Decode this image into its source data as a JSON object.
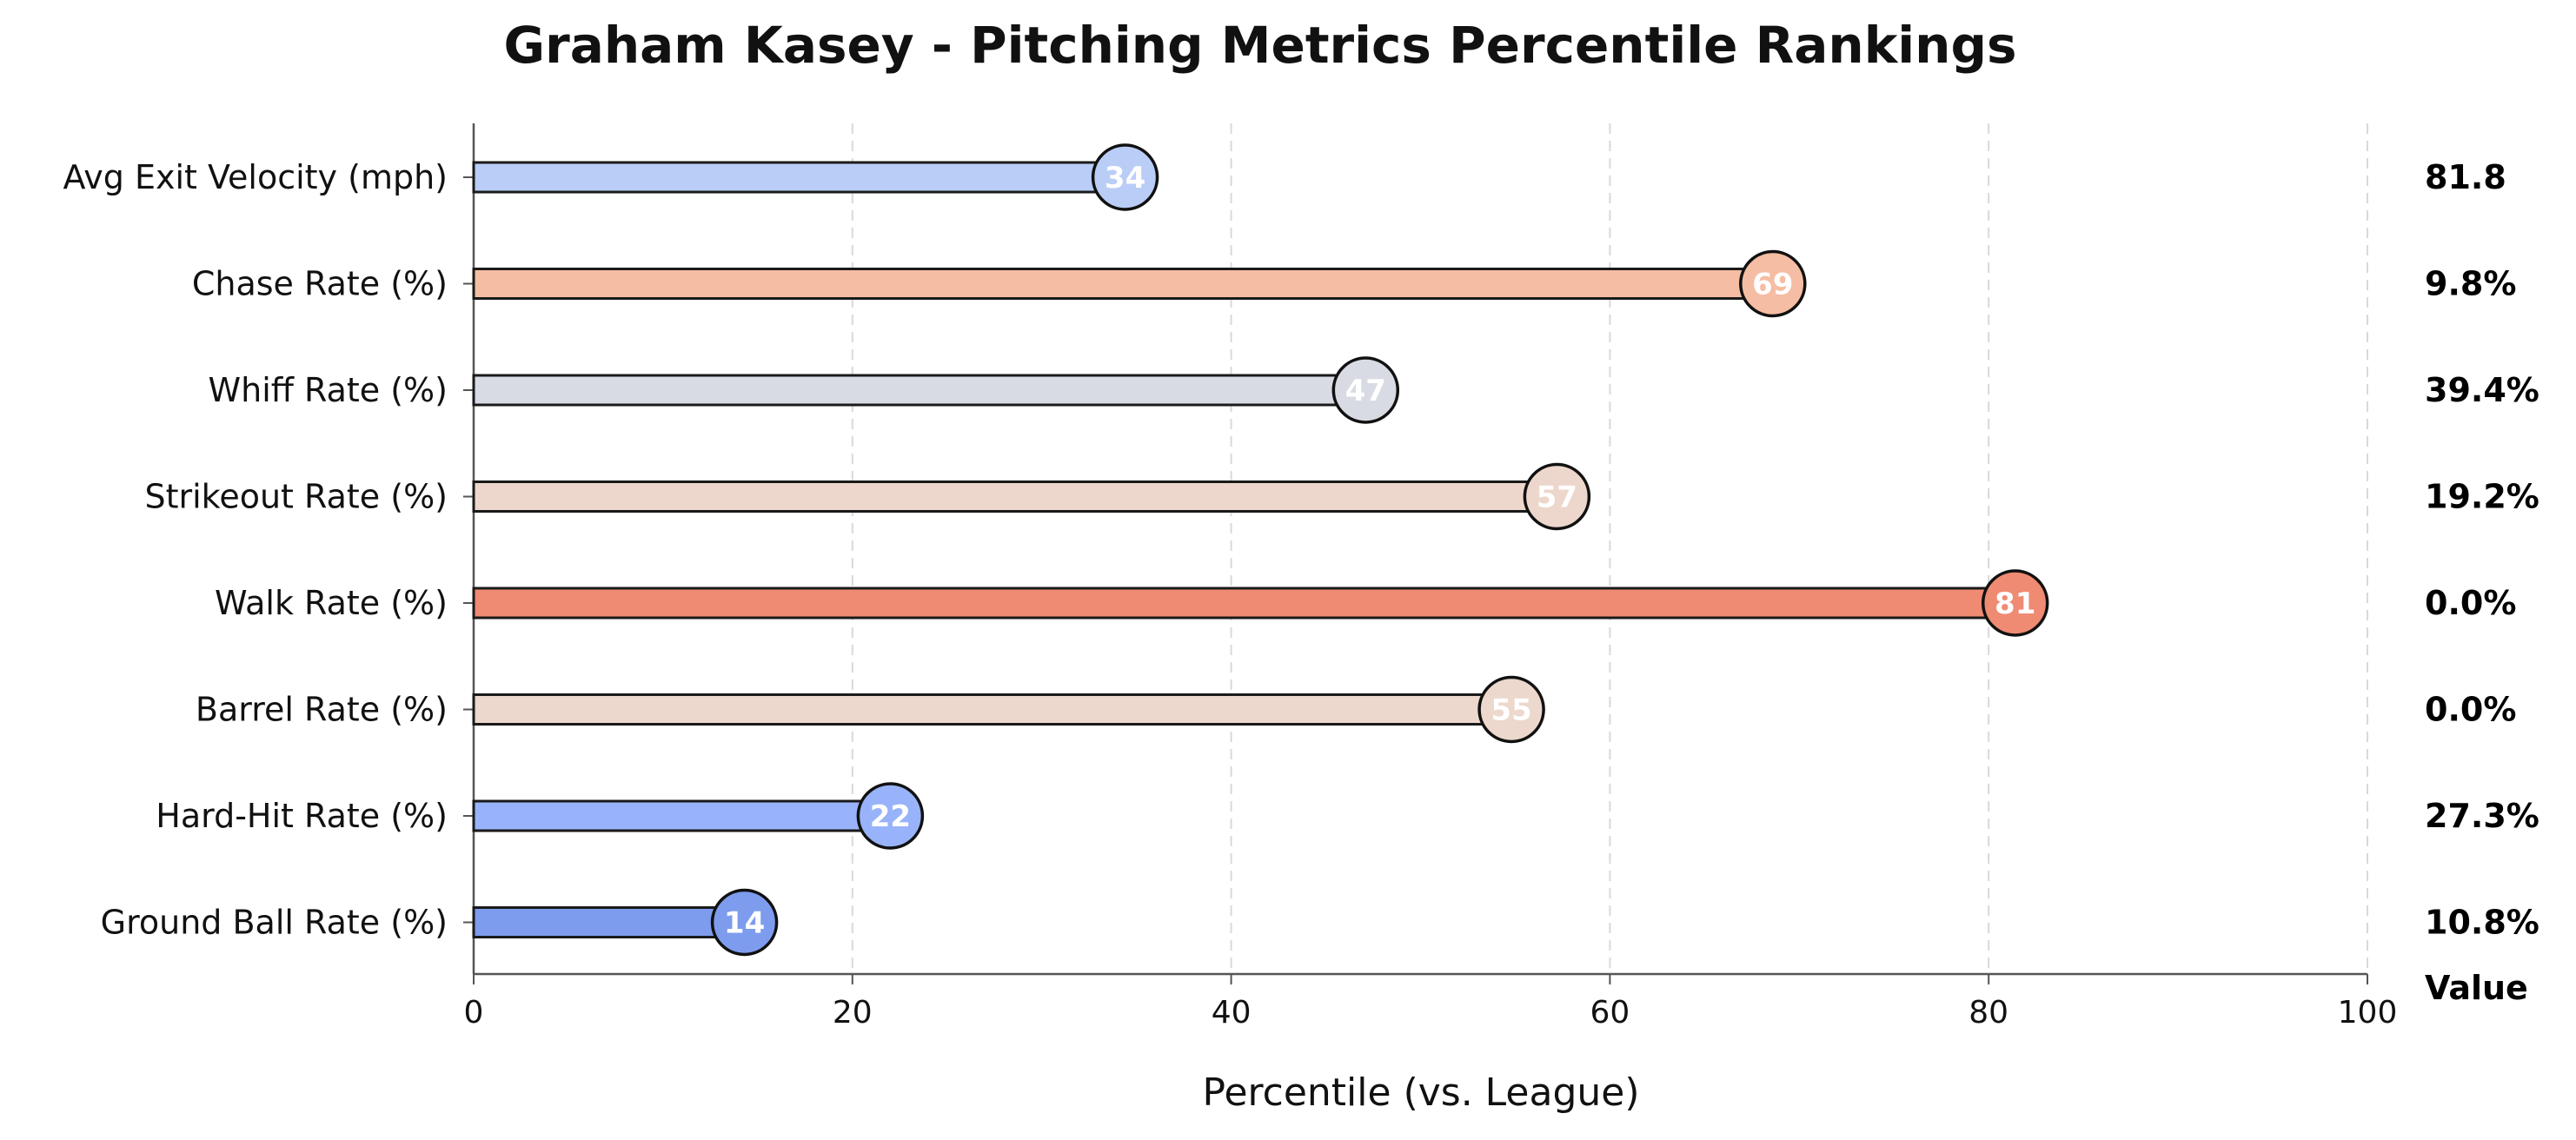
{
  "chart_data": {
    "type": "bar",
    "orientation": "horizontal",
    "style": "lollipop",
    "title": "Graham Kasey - Pitching Metrics Percentile Rankings",
    "xlabel": "Percentile (vs. League)",
    "ylabel": "",
    "xlim": [
      0,
      100
    ],
    "xticks": [
      "0",
      "20",
      "40",
      "60",
      "80",
      "100"
    ],
    "grid": "vertical dashed",
    "value_column_header": "Value",
    "categories": [
      "Avg Exit Velocity (mph)",
      "Chase Rate (%)",
      "Whiff Rate (%)",
      "Strikeout Rate (%)",
      "Walk Rate (%)",
      "Barrel Rate (%)",
      "Hard-Hit Rate (%)",
      "Ground Ball Rate (%)"
    ],
    "percentiles": [
      34.4,
      68.6,
      47.1,
      57.2,
      81.4,
      54.8,
      22.0,
      14.3
    ],
    "percentile_labels": [
      "34",
      "69",
      "47",
      "57",
      "81",
      "55",
      "22",
      "14"
    ],
    "values": [
      "81.8",
      "9.8%",
      "39.4%",
      "19.2%",
      "0.0%",
      "0.0%",
      "27.3%",
      "10.8%"
    ],
    "colors": [
      "#b9cdf7",
      "#f5bda3",
      "#d8dbe3",
      "#edd7cc",
      "#ef8a73",
      "#ecd8cc",
      "#98b3f9",
      "#7e9cee"
    ]
  }
}
